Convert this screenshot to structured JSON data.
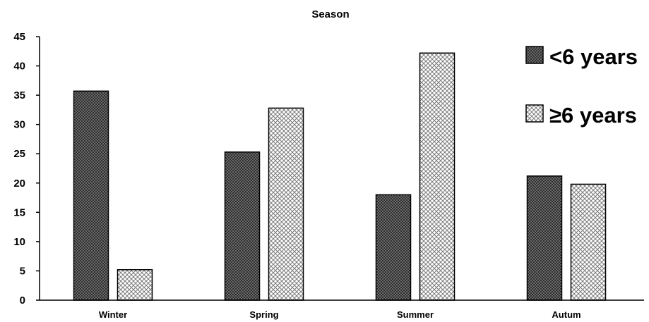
{
  "chart_data": {
    "type": "bar",
    "title": "Season",
    "xlabel": "",
    "ylabel": "",
    "categories": [
      "Winter",
      "Spring",
      "Summer",
      "Autum"
    ],
    "series": [
      {
        "name": "<6 years",
        "values": [
          35.7,
          25.3,
          18.0,
          21.2
        ],
        "pattern": "dense-dark"
      },
      {
        "name": "≥6 years",
        "values": [
          5.2,
          32.8,
          42.2,
          19.8
        ],
        "pattern": "light-crosshatch"
      }
    ],
    "ylim": [
      0,
      45
    ],
    "yticks": [
      0,
      5,
      10,
      15,
      20,
      25,
      30,
      35,
      40,
      45
    ],
    "grid": false,
    "legend": "top-right"
  }
}
